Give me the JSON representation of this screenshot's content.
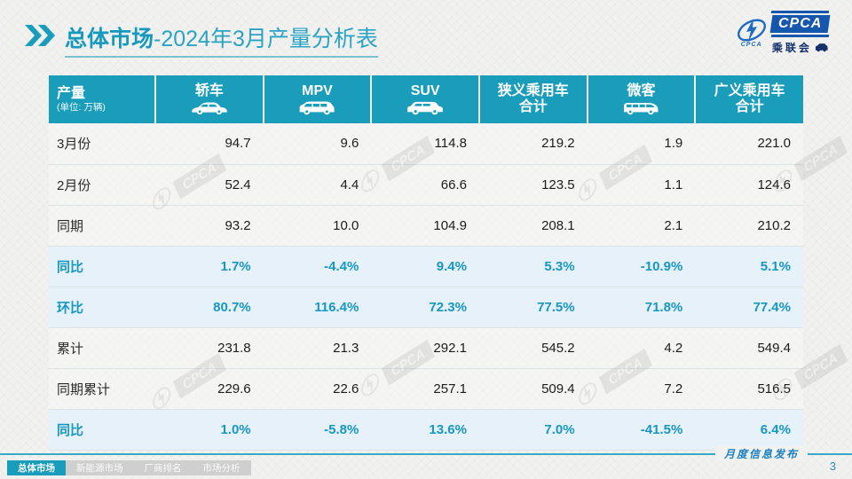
{
  "title": {
    "section": "总体市场",
    "rest": "-2024年3月产量分析表"
  },
  "logo": {
    "acronym": "CPCA",
    "cn": "乘联会",
    "small": "CPCA"
  },
  "watermark": {
    "text": "CPCA"
  },
  "table": {
    "columns": [
      {
        "title": "产量",
        "subtitle": "(单位: 万辆)"
      },
      {
        "title": "轿车",
        "icon": "sedan-icon"
      },
      {
        "title": "MPV",
        "icon": "mpv-icon"
      },
      {
        "title": "SUV",
        "icon": "suv-icon"
      },
      {
        "title": "狭义乘用车",
        "title2": "合计"
      },
      {
        "title": "微客",
        "icon": "microvan-icon"
      },
      {
        "title": "广义乘用车",
        "title2": "合计"
      }
    ],
    "rows": [
      {
        "label": "3月份",
        "highlight": false,
        "values": [
          "94.7",
          "9.6",
          "114.8",
          "219.2",
          "1.9",
          "221.0"
        ]
      },
      {
        "label": "2月份",
        "highlight": false,
        "values": [
          "52.4",
          "4.4",
          "66.6",
          "123.5",
          "1.1",
          "124.6"
        ]
      },
      {
        "label": "同期",
        "highlight": false,
        "values": [
          "93.2",
          "10.0",
          "104.9",
          "208.1",
          "2.1",
          "210.2"
        ]
      },
      {
        "label": "同比",
        "highlight": true,
        "values": [
          "1.7%",
          "-4.4%",
          "9.4%",
          "5.3%",
          "-10.9%",
          "5.1%"
        ]
      },
      {
        "label": "环比",
        "highlight": true,
        "values": [
          "80.7%",
          "116.4%",
          "72.3%",
          "77.5%",
          "71.8%",
          "77.4%"
        ]
      },
      {
        "label": "累计",
        "highlight": false,
        "values": [
          "231.8",
          "21.3",
          "292.1",
          "545.2",
          "4.2",
          "549.4"
        ]
      },
      {
        "label": "同期累计",
        "highlight": false,
        "values": [
          "229.6",
          "22.6",
          "257.1",
          "509.4",
          "7.2",
          "516.5"
        ]
      },
      {
        "label": "同比",
        "highlight": true,
        "values": [
          "1.0%",
          "-5.8%",
          "13.6%",
          "7.0%",
          "-41.5%",
          "6.4%"
        ]
      }
    ]
  },
  "footer": {
    "tabs": [
      {
        "label": "总体市场",
        "active": true
      },
      {
        "label": "新能源市场",
        "active": false
      },
      {
        "label": "厂商排名",
        "active": false
      },
      {
        "label": "市场分析",
        "active": false
      }
    ],
    "publication": "月度信息发布",
    "page": "3"
  },
  "colors": {
    "accent": "#1a9dbb",
    "highlight_bg": "#e6f1f9",
    "highlight_text": "#1797c2",
    "logo_blue": "#1657ae",
    "footer_blue": "#1a7fc0"
  }
}
